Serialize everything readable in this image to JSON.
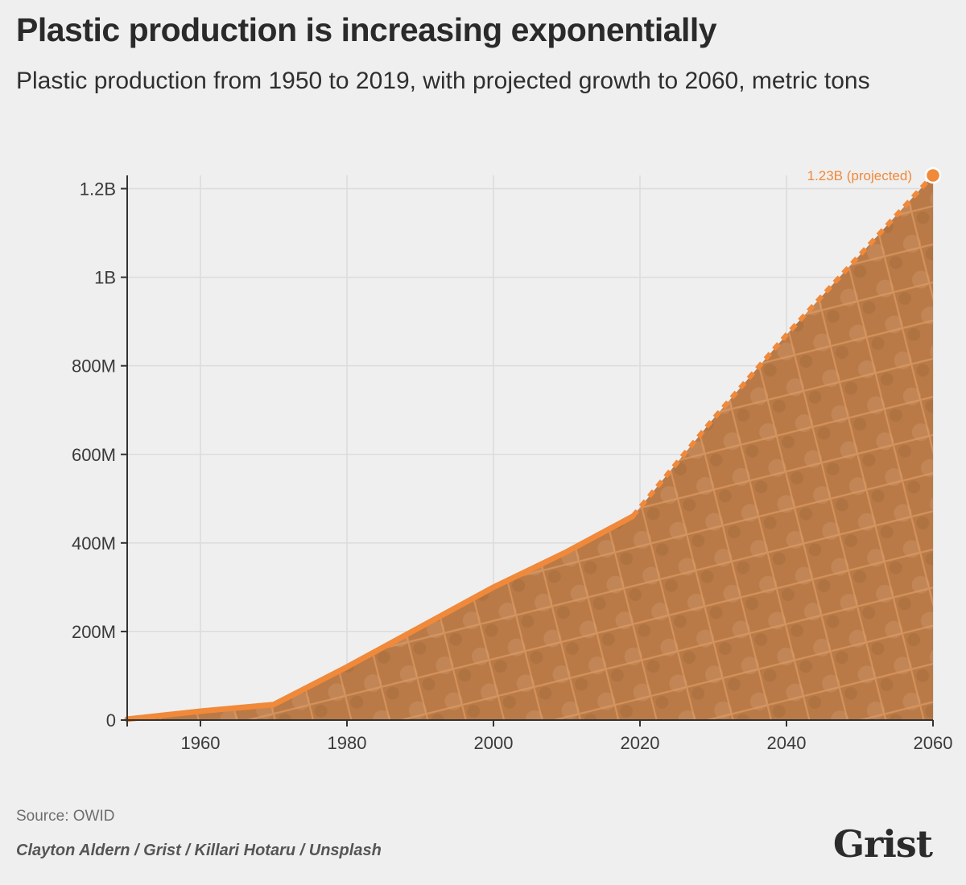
{
  "header": {
    "title": "Plastic production is increasing exponentially",
    "subtitle": "Plastic production from 1950 to 2019, with projected growth to 2060, metric tons"
  },
  "footer": {
    "source": "Source: OWID",
    "credit": "Clayton Aldern / Grist / Killari Hotaru / Unsplash",
    "logo": "Grist"
  },
  "chart_data": {
    "type": "area",
    "title": "Plastic production is increasing exponentially",
    "subtitle": "Plastic production from 1950 to 2019, with projected growth to 2060, metric tons",
    "xlabel": "",
    "ylabel": "",
    "xlim": [
      1950,
      2060
    ],
    "ylim": [
      0,
      1230000000
    ],
    "x_ticks": [
      {
        "value": 1960,
        "label": "1960"
      },
      {
        "value": 1980,
        "label": "1980"
      },
      {
        "value": 2000,
        "label": "2000"
      },
      {
        "value": 2020,
        "label": "2020"
      },
      {
        "value": 2040,
        "label": "2040"
      },
      {
        "value": 2060,
        "label": "2060"
      }
    ],
    "y_ticks": [
      {
        "value": 0,
        "label": "0"
      },
      {
        "value": 200000000,
        "label": "200M"
      },
      {
        "value": 400000000,
        "label": "400M"
      },
      {
        "value": 600000000,
        "label": "600M"
      },
      {
        "value": 800000000,
        "label": "800M"
      },
      {
        "value": 1000000000,
        "label": "1B"
      },
      {
        "value": 1200000000,
        "label": "1.2B"
      }
    ],
    "grid": true,
    "series": [
      {
        "segment": "historical",
        "style": "solid",
        "x": [
          1950,
          1960,
          1970,
          1980,
          1990,
          2000,
          2010,
          2019
        ],
        "y": [
          2000000,
          20000000,
          35000000,
          120000000,
          210000000,
          300000000,
          380000000,
          460000000
        ]
      },
      {
        "segment": "projected",
        "style": "dashed",
        "x": [
          2019,
          2030,
          2040,
          2050,
          2060
        ],
        "y": [
          460000000,
          680000000,
          870000000,
          1050000000,
          1230000000
        ]
      }
    ],
    "annotation": {
      "x": 2060,
      "y": 1230000000,
      "text": "1.23B (projected)"
    },
    "colors": {
      "line": "#f0893a",
      "fill": "#b97a47",
      "mesh": "#d4925c",
      "grid": "#dcdcdc",
      "axis": "#333333"
    }
  }
}
